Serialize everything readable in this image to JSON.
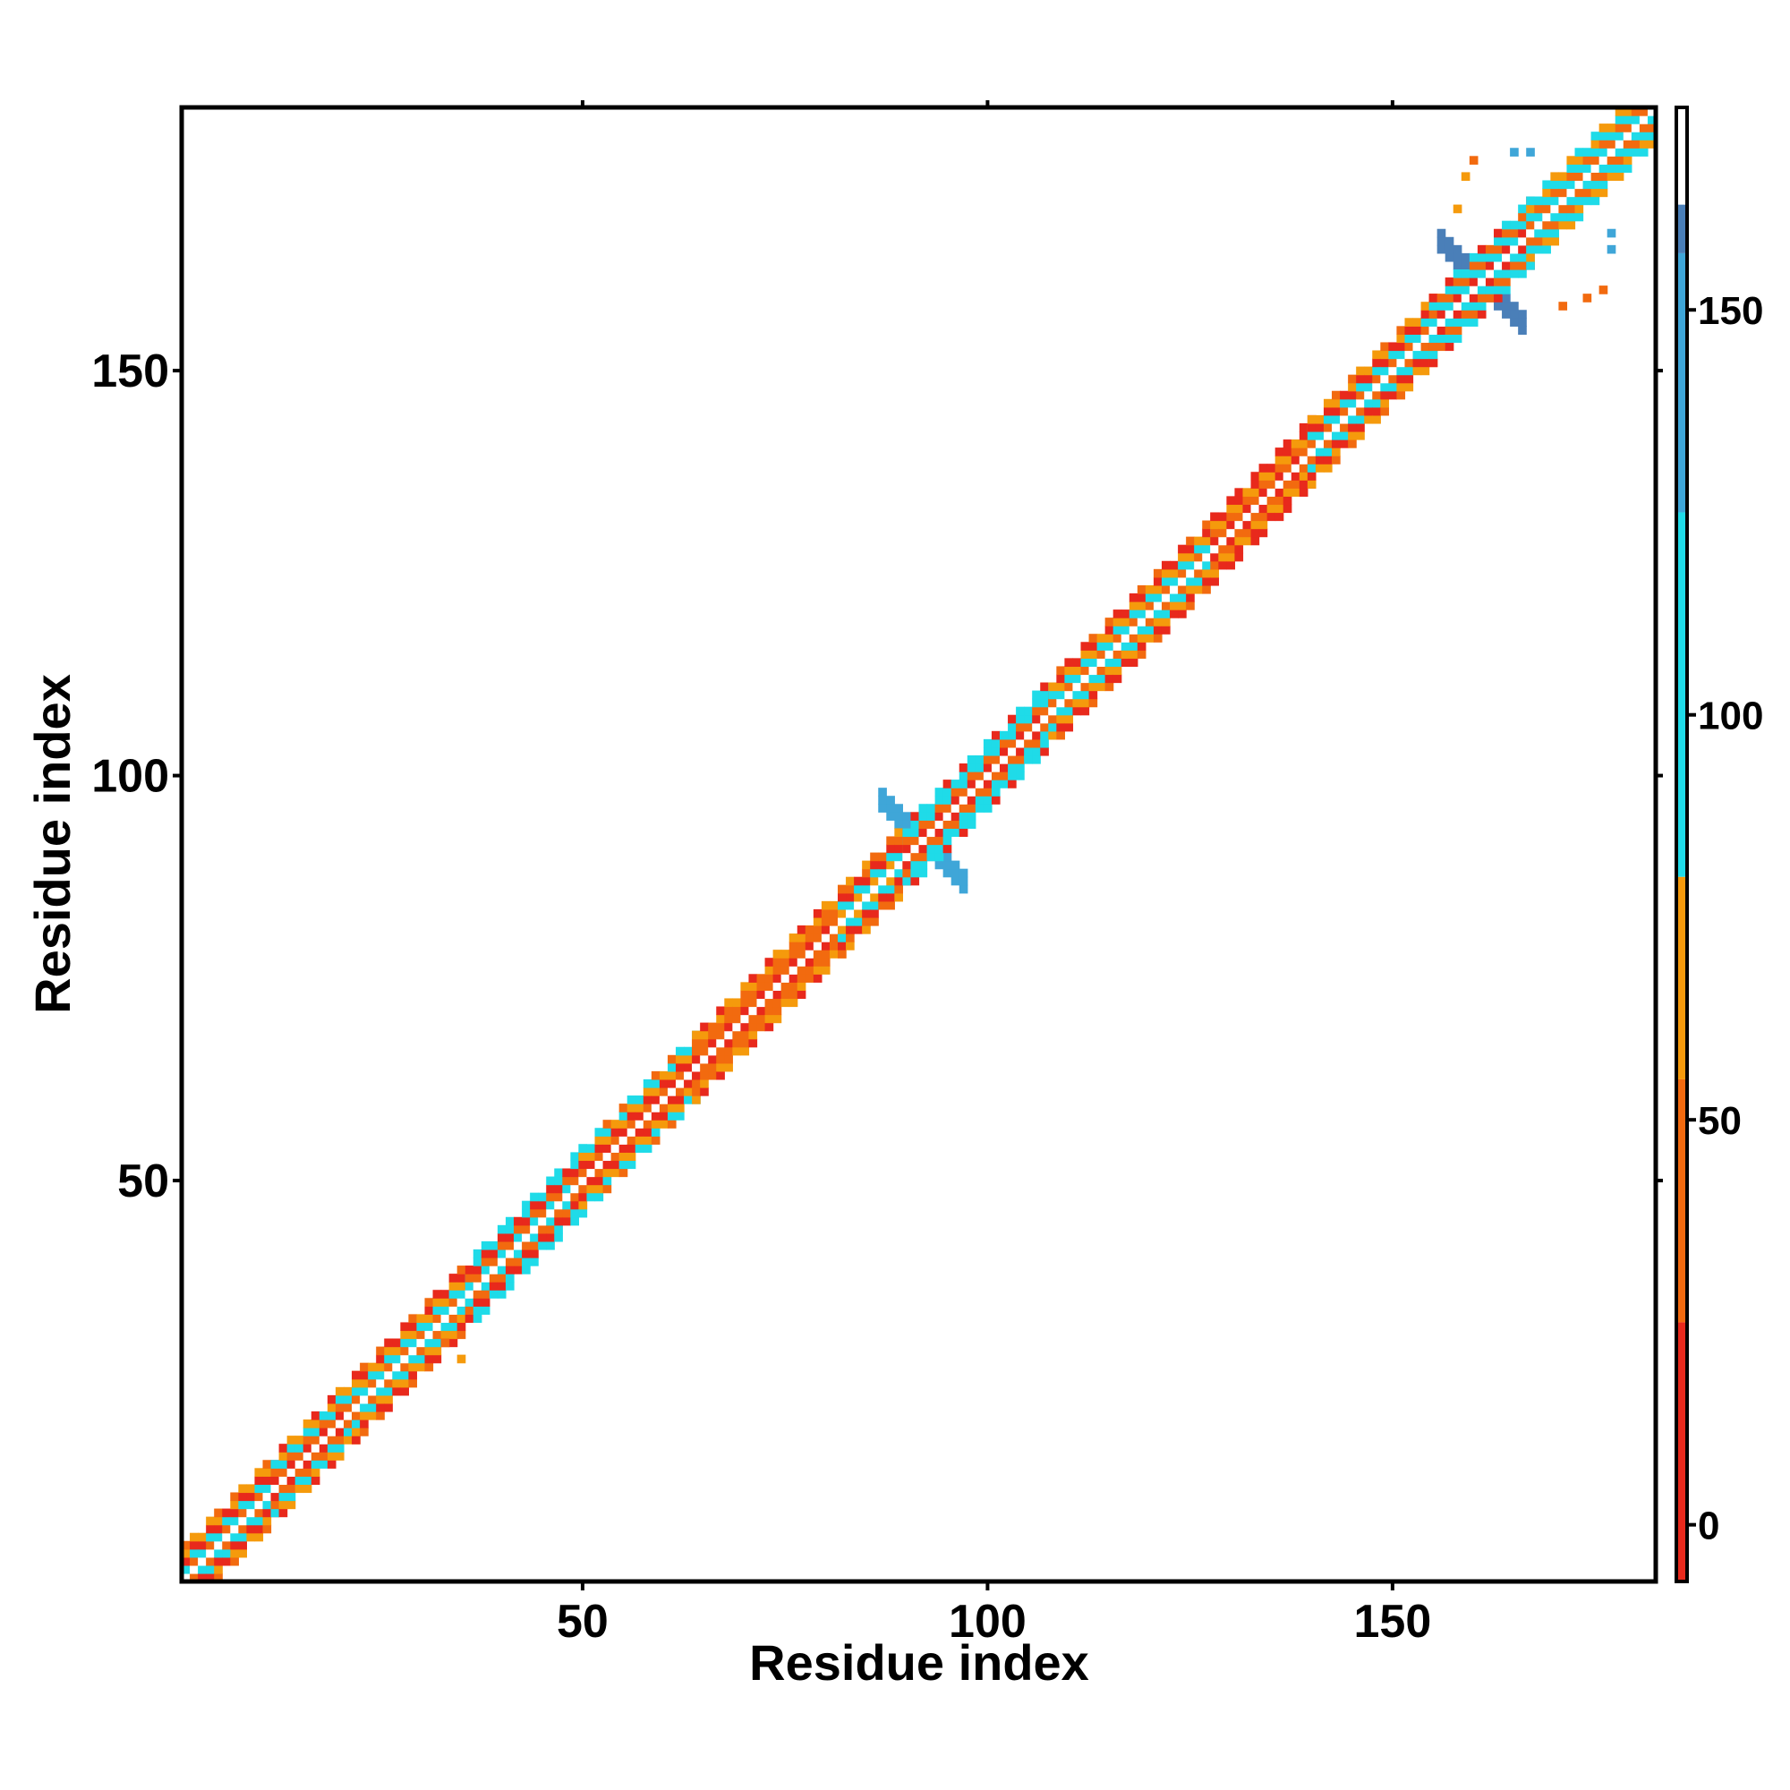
{
  "chart_data": {
    "type": "heatmap",
    "title": "",
    "xlabel": "Residue index",
    "ylabel": "Residue index",
    "xlim": [
      1,
      182
    ],
    "ylim": [
      1,
      182
    ],
    "x_ticks": [
      50,
      100,
      150
    ],
    "y_ticks": [
      50,
      100,
      150
    ],
    "x_tick_labels": [
      "50",
      "100",
      "150"
    ],
    "y_tick_labels": [
      "50",
      "100",
      "150"
    ],
    "grid": false,
    "legend": "none",
    "colorbar": {
      "placement": "right",
      "range": [
        -7,
        175
      ],
      "ticks": [
        0,
        50,
        100,
        150
      ],
      "tick_labels": [
        "0",
        "50",
        "100",
        "150"
      ],
      "bands": [
        {
          "from": -7,
          "to": 25,
          "color": "#e8291c"
        },
        {
          "from": 25,
          "to": 55,
          "color": "#f26a0f"
        },
        {
          "from": 55,
          "to": 80,
          "color": "#f59a0c"
        },
        {
          "from": 80,
          "to": 125,
          "color": "#1fdbe8"
        },
        {
          "from": 125,
          "to": 157,
          "color": "#3fa6d8"
        },
        {
          "from": 157,
          "to": 163,
          "color": "#4a7fb8"
        },
        {
          "from": 163,
          "to": 175,
          "color": "#ffffff"
        }
      ]
    },
    "diagonal_segments": [
      {
        "from": 1,
        "to": 12,
        "pattern": [
          "#f26a0f",
          "#1fdbe8",
          "#e8291c",
          "#f59a0c"
        ]
      },
      {
        "from": 12,
        "to": 22,
        "pattern": [
          "#e8291c",
          "#f26a0f",
          "#1fdbe8",
          "#f59a0c"
        ]
      },
      {
        "from": 22,
        "to": 36,
        "pattern": [
          "#f26a0f",
          "#1fdbe8",
          "#f59a0c",
          "#e8291c"
        ]
      },
      {
        "from": 36,
        "to": 50,
        "pattern": [
          "#1fdbe8",
          "#f26a0f",
          "#e8291c",
          "#1fdbe8"
        ]
      },
      {
        "from": 50,
        "to": 64,
        "pattern": [
          "#f26a0f",
          "#e8291c",
          "#f59a0c",
          "#1fdbe8"
        ]
      },
      {
        "from": 64,
        "to": 82,
        "pattern": [
          "#e8291c",
          "#f26a0f",
          "#f26a0f",
          "#f59a0c"
        ]
      },
      {
        "from": 82,
        "to": 90,
        "pattern": [
          "#f59a0c",
          "#1fdbe8",
          "#e8291c",
          "#f26a0f"
        ]
      },
      {
        "from": 90,
        "to": 108,
        "pattern": [
          "#e8291c",
          "#f26a0f",
          "#1fdbe8",
          "#1fdbe8"
        ]
      },
      {
        "from": 108,
        "to": 128,
        "pattern": [
          "#f26a0f",
          "#1fdbe8",
          "#f59a0c",
          "#e8291c"
        ]
      },
      {
        "from": 128,
        "to": 140,
        "pattern": [
          "#e8291c",
          "#f26a0f",
          "#f59a0c",
          "#e8291c"
        ]
      },
      {
        "from": 140,
        "to": 155,
        "pattern": [
          "#f26a0f",
          "#1fdbe8",
          "#e8291c",
          "#f59a0c"
        ]
      },
      {
        "from": 155,
        "to": 167,
        "pattern": [
          "#e8291c",
          "#1fdbe8",
          "#f26a0f",
          "#1fdbe8"
        ]
      },
      {
        "from": 167,
        "to": 182,
        "pattern": [
          "#1fdbe8",
          "#f26a0f",
          "#1fdbe8",
          "#f59a0c"
        ]
      }
    ],
    "cross_regions": [
      {
        "center": 92,
        "halfwidth": 5,
        "color": "#3fa6d8"
      },
      {
        "center": 161,
        "halfwidth": 5,
        "color": "#4a7fb8"
      }
    ],
    "scattered_cells": [
      {
        "x": 33,
        "y": 30,
        "color": "#f26a0f"
      },
      {
        "x": 35,
        "y": 28,
        "color": "#f59a0c"
      },
      {
        "x": 160,
        "y": 176,
        "color": "#f26a0f"
      },
      {
        "x": 159,
        "y": 174,
        "color": "#f59a0c"
      },
      {
        "x": 158,
        "y": 170,
        "color": "#f59a0c"
      },
      {
        "x": 165,
        "y": 177,
        "color": "#3fa6d8"
      },
      {
        "x": 167,
        "y": 177,
        "color": "#3fa6d8"
      },
      {
        "x": 176,
        "y": 160,
        "color": "#f26a0f"
      },
      {
        "x": 174,
        "y": 159,
        "color": "#f26a0f"
      },
      {
        "x": 171,
        "y": 158,
        "color": "#f26a0f"
      },
      {
        "x": 177,
        "y": 165,
        "color": "#3fa6d8"
      },
      {
        "x": 177,
        "y": 167,
        "color": "#3fa6d8"
      }
    ]
  }
}
